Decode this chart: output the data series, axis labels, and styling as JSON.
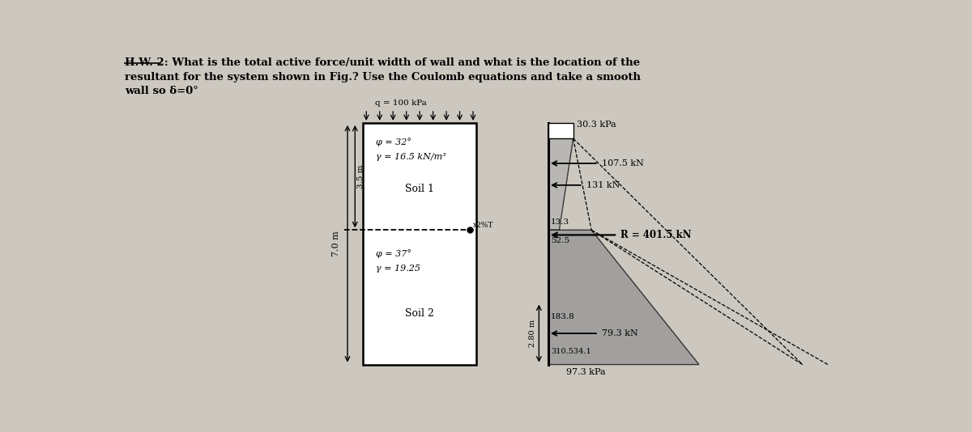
{
  "title_line1": "H.W. 2: What is the total active force/unit width of wall and what is the location of the",
  "title_line2": "resultant for the system shown in Fig.? Use the Coulomb equations and take a smooth",
  "title_line3": "wall so δ=0°",
  "bg_color": "#ccc8c0",
  "surcharge_label": "q = 100 kPa",
  "soil1_label1": "φ = 32°",
  "soil1_label2": "γ = 16.5 kN/m³",
  "soil1_name": "Soil 1",
  "soil2_label1": "φ = 37°",
  "soil2_label2": "γ = 19.25",
  "soil2_name": "Soil 2",
  "height_label": "7.0 m",
  "depth1_label": "3.5 m",
  "pressure_top": "30.3 kPa",
  "force1_label": "107.5 kN",
  "force2_label": "131 kN",
  "pressure_mid1": "13.3",
  "pressure_mid2": "52.5",
  "resultant_label": "R = 401.5 kN",
  "pressure_bot1": "183.8",
  "depth_label": "2.80 m",
  "force3_label": "79.3 kN",
  "pressure_bot2": "310.534.1",
  "bottom_label": "97.3 kPa"
}
